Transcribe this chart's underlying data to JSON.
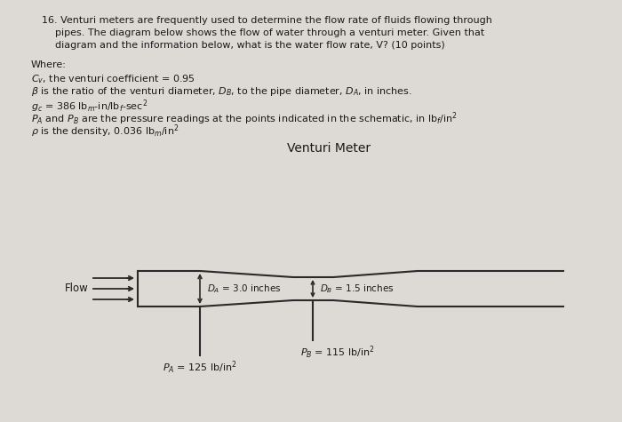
{
  "bg_color": "#ddd9d5",
  "text_color": "#1a1a1a",
  "pipe_color": "#2a2a2a",
  "q_line1": "16. Venturi meters are frequently used to determine the flow rate of fluids flowing through",
  "q_line2": "     pipes. The diagram below shows the flow of water through a venturi meter. Given that",
  "q_line3": "     diagram and the information below, what is the water flow rate, V? (10 points)",
  "where_line": "Where:",
  "cv_line": "C_v, the venturi coefficient = 0.95",
  "beta_line": "is the ratio of the venturi diameter, D_B, to the pipe diameter, D_A, in inches.",
  "gc_line": " = 386 lb_m-in/lb_f-sec^2",
  "p_line": "P_A and P_B are the pressure readings at the points indicated in the schematic, in lb_f/in^2",
  "rho_line": " is the density, 0.036 lb_m/in^2",
  "diagram_title": "Venturi Meter",
  "flow_label": "Flow",
  "DA_label": "D_A = 3.0 inches",
  "DB_label": "D_B = 1.5 inches",
  "PA_label": "P_A = 125 lb/in",
  "PB_label": "P_B = 115 lb/in",
  "font_size_text": 8.0,
  "font_size_diagram": 7.5
}
